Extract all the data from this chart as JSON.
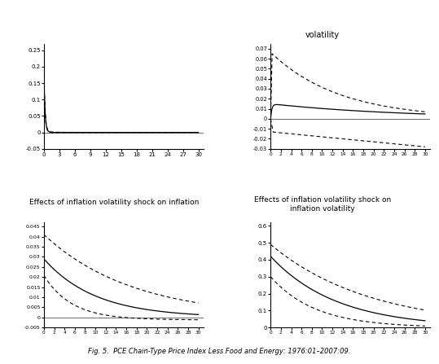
{
  "title": "Fig. 5.  PCE Chain-Type Price Index Less Food and Energy: 1976:01–2007:09.",
  "top_right_above": "volatility",
  "bottom_left_label": "Effects of inflation volatility shock on inflation",
  "bottom_right_label": "Effects of inflation volatility shock on\ninflation volatility",
  "panel_bg": "#ffffff"
}
